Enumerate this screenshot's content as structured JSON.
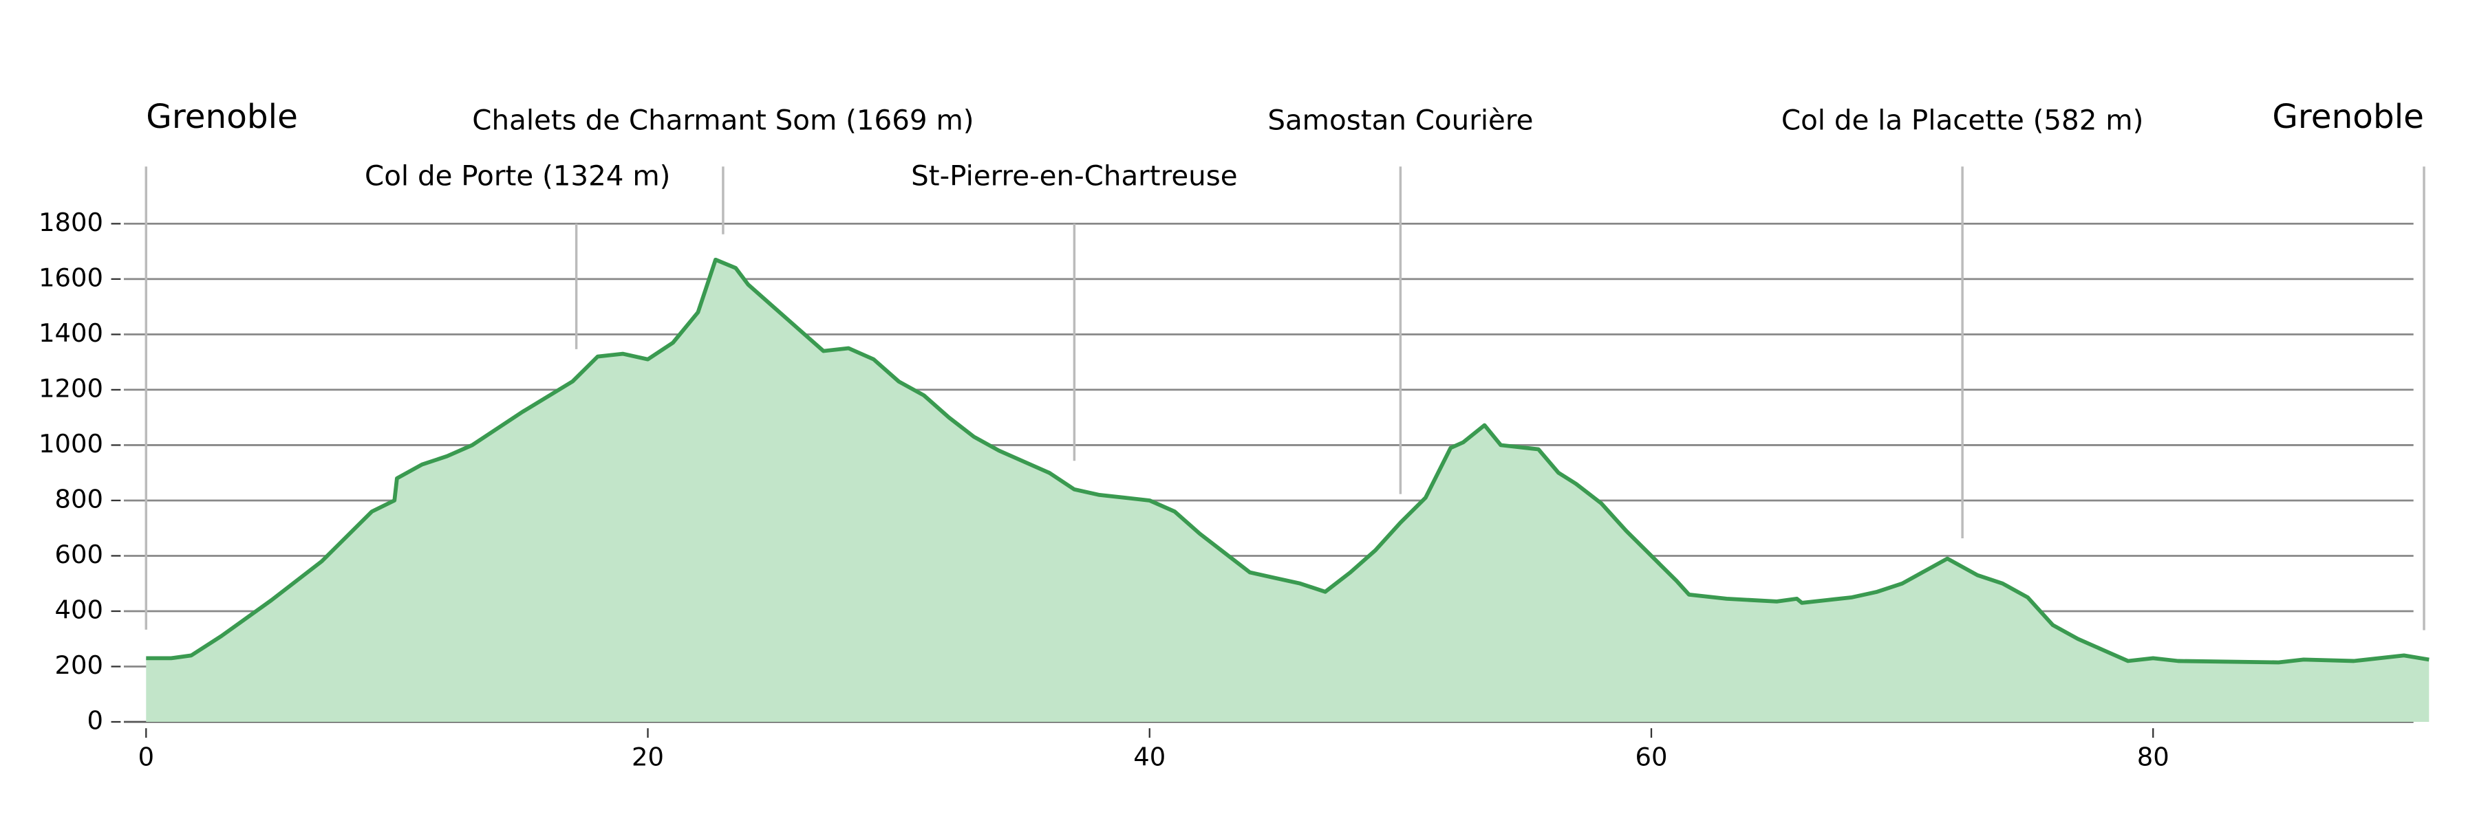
{
  "chart_data": {
    "type": "area",
    "x": [
      0,
      1,
      1.8,
      3,
      5,
      7,
      9,
      9.9,
      10,
      11,
      12,
      13,
      15,
      17,
      18,
      19,
      20,
      21,
      22,
      22.7,
      23.5,
      24,
      25,
      26,
      27,
      28,
      29,
      30,
      31,
      32,
      33,
      34,
      35,
      36,
      37,
      38,
      39,
      40,
      41,
      42,
      43,
      44,
      45,
      46,
      47,
      48,
      49,
      50,
      51,
      52,
      52.5,
      53.35,
      54,
      55,
      55.5,
      56.3,
      57,
      58,
      59,
      60,
      61,
      61.5,
      63,
      65,
      65.8,
      66,
      67,
      68,
      69,
      70,
      71,
      71.8,
      73,
      74,
      75,
      76,
      77,
      78,
      79,
      80,
      81,
      85,
      86,
      88,
      90,
      91
    ],
    "series": [
      {
        "color": "#3a9a50",
        "fill": "#c2e5c9",
        "values": [
          230,
          230,
          240,
          310,
          440,
          580,
          760,
          800,
          880,
          930,
          960,
          1000,
          1120,
          1230,
          1320,
          1330,
          1310,
          1370,
          1480,
          1670,
          1640,
          1580,
          1500,
          1420,
          1340,
          1350,
          1310,
          1230,
          1180,
          1100,
          1030,
          980,
          940,
          900,
          840,
          820,
          810,
          800,
          760,
          680,
          610,
          540,
          520,
          500,
          470,
          540,
          620,
          720,
          810,
          990,
          1010,
          1072,
          1000,
          990,
          985,
          900,
          860,
          790,
          690,
          600,
          510,
          460,
          445,
          435,
          445,
          430,
          440,
          450,
          470,
          500,
          550,
          590,
          530,
          500,
          450,
          350,
          300,
          260,
          220,
          230,
          220,
          215,
          225,
          220,
          240,
          225
        ]
      }
    ],
    "annotations": [
      {
        "x": 0,
        "label": "Grenoble"
      },
      {
        "x": 17.15,
        "label": "Col de Porte (1324 m)"
      },
      {
        "x": 23,
        "label": "Chalets de Charmant Som (1669 m)"
      },
      {
        "x": 37,
        "label": "St-Pierre-en-Chartreuse"
      },
      {
        "x": 50,
        "label": "Samostan Courière"
      },
      {
        "x": 72.4,
        "label": "Col de la Placette (582 m)"
      },
      {
        "x": 90.8,
        "label": "Grenoble"
      }
    ],
    "xlim": [
      -1,
      92
    ],
    "xticks": [
      0,
      20,
      40,
      60,
      80
    ],
    "ylim": [
      0,
      1800
    ],
    "yticks": [
      0,
      200,
      400,
      600,
      800,
      1000,
      1200,
      1400,
      1600,
      1800
    ],
    "grid": true
  }
}
